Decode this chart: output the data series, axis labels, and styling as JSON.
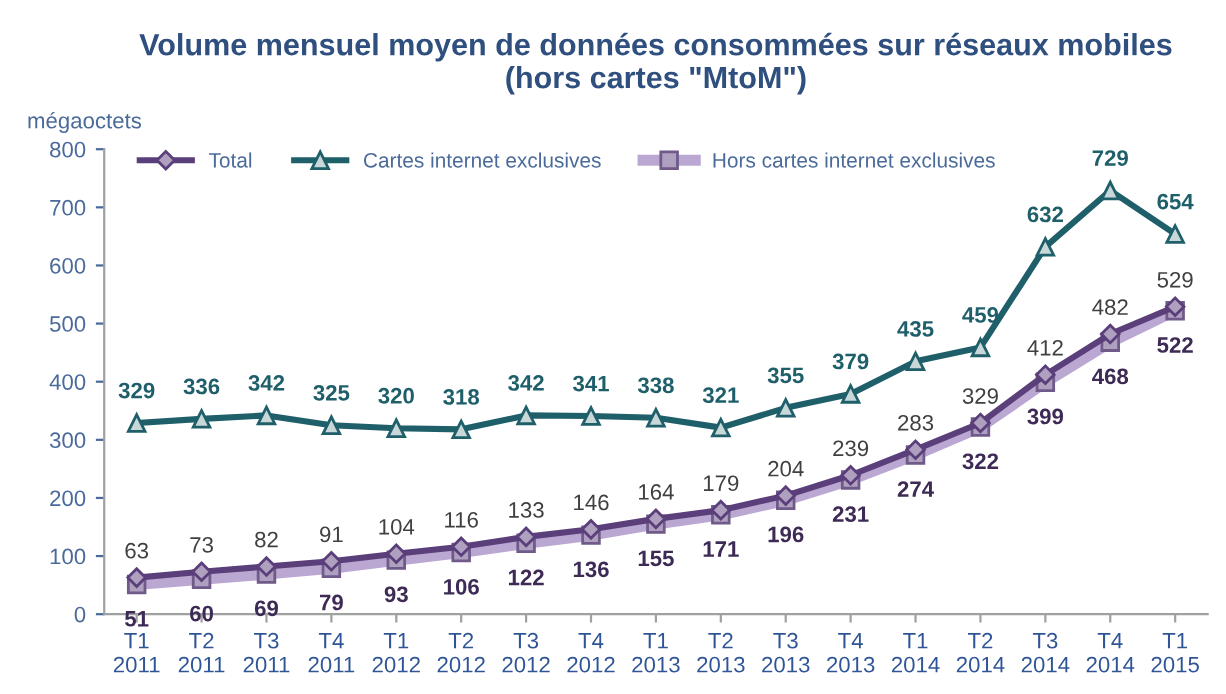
{
  "chart_data": {
    "type": "line",
    "title": "Volume mensuel moyen de données consommées sur réseaux mobiles\n(hors cartes \"MtoM\")",
    "ylabel": "mégaoctets",
    "categories": [
      "T1\n2011",
      "T2\n2011",
      "T3\n2011",
      "T4\n2011",
      "T1\n2012",
      "T2\n2012",
      "T3\n2012",
      "T4\n2012",
      "T1\n2013",
      "T2\n2013",
      "T3\n2013",
      "T4\n2013",
      "T1\n2014",
      "T2\n2014",
      "T3\n2014",
      "T4\n2014",
      "T1\n2015"
    ],
    "series": [
      {
        "name": "Total",
        "color": "#5b3f7a",
        "marker": "diamond",
        "values": [
          63,
          73,
          82,
          91,
          104,
          116,
          133,
          146,
          164,
          179,
          204,
          239,
          283,
          329,
          412,
          482,
          529
        ]
      },
      {
        "name": "Cartes internet exclusives",
        "color": "#1f5f6a",
        "marker": "triangle",
        "values": [
          329,
          336,
          342,
          325,
          320,
          318,
          342,
          341,
          338,
          321,
          355,
          379,
          435,
          459,
          632,
          729,
          654
        ]
      },
      {
        "name": "Hors cartes internet exclusives",
        "color": "#bba8d2",
        "marker": "square",
        "values": [
          51,
          60,
          69,
          79,
          93,
          106,
          122,
          136,
          155,
          171,
          196,
          231,
          274,
          322,
          399,
          468,
          522
        ]
      }
    ],
    "ylim": [
      0,
      800
    ],
    "yticks": [
      0,
      100,
      200,
      300,
      400,
      500,
      600,
      700,
      800
    ],
    "grid": false,
    "legend": "top",
    "data_labels": true,
    "line_style": "solid"
  }
}
